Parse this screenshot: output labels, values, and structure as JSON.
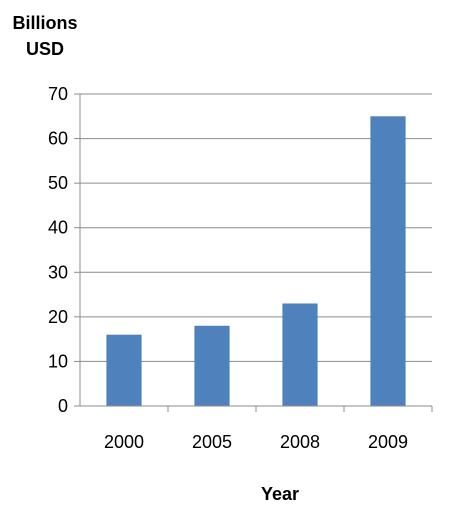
{
  "chart_data": {
    "type": "bar",
    "categories": [
      "2000",
      "2005",
      "2008",
      "2009"
    ],
    "values": [
      16,
      18,
      23,
      65
    ],
    "ylabel_lines": [
      "Billions",
      "USD"
    ],
    "xlabel": "Year",
    "ylim": [
      0,
      70
    ],
    "yticks": [
      "0",
      "10",
      "20",
      "30",
      "40",
      "50",
      "60",
      "70"
    ],
    "grid": true,
    "legend": "none",
    "bar_color": "#4F81BD",
    "grid_color": "#8C8C8C"
  }
}
